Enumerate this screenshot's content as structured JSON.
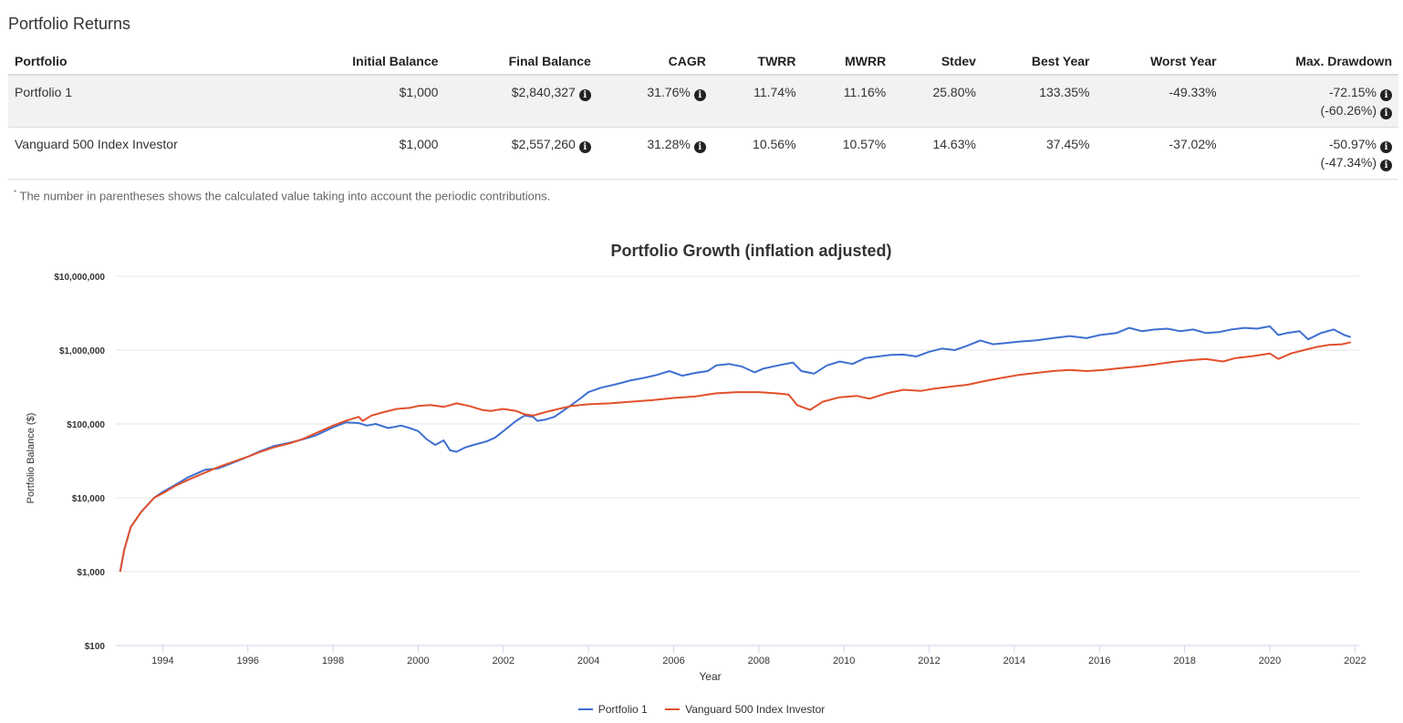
{
  "section_title": "Portfolio Returns",
  "table": {
    "headers": [
      "Portfolio",
      "Initial Balance",
      "Final Balance",
      "CAGR",
      "TWRR",
      "MWRR",
      "Stdev",
      "Best Year",
      "Worst Year",
      "Max. Drawdown"
    ],
    "rows": [
      {
        "portfolio": "Portfolio 1",
        "initial": "$1,000",
        "final": "$2,840,327",
        "cagr": "31.76%",
        "twrr": "11.74%",
        "mwrr": "11.16%",
        "stdev": "25.80%",
        "best": "133.35%",
        "worst": "-49.33%",
        "max_dd": "-72.15%",
        "max_dd_contrib": "(-60.26%)"
      },
      {
        "portfolio": "Vanguard 500 Index Investor",
        "initial": "$1,000",
        "final": "$2,557,260",
        "cagr": "31.28%",
        "twrr": "10.56%",
        "mwrr": "10.57%",
        "stdev": "14.63%",
        "best": "37.45%",
        "worst": "-37.02%",
        "max_dd": "-50.97%",
        "max_dd_contrib": "(-47.34%)"
      }
    ]
  },
  "footnote_mark": "*",
  "footnote": "The number in parentheses shows the calculated value taking into account the periodic contributions.",
  "info_icon_glyph": "i",
  "chart_data": {
    "type": "line",
    "title": "Portfolio Growth (inflation adjusted)",
    "xlabel": "Year",
    "ylabel": "Portfolio Balance ($)",
    "yscale": "log",
    "ylim": [
      100,
      10000000
    ],
    "xlim": [
      1992.9,
      2022.1
    ],
    "y_ticks": [
      100,
      1000,
      10000,
      100000,
      1000000,
      10000000
    ],
    "y_tick_labels": [
      "$100",
      "$1,000",
      "$10,000",
      "$100,000",
      "$1,000,000",
      "$10,000,000"
    ],
    "x_ticks": [
      1994,
      1996,
      1998,
      2000,
      2002,
      2004,
      2006,
      2008,
      2010,
      2012,
      2014,
      2016,
      2018,
      2020,
      2022
    ],
    "x_tick_labels": [
      "1994",
      "1996",
      "1998",
      "2000",
      "2002",
      "2004",
      "2006",
      "2008",
      "2010",
      "2012",
      "2014",
      "2016",
      "2018",
      "2020",
      "2022"
    ],
    "legend_position": "bottom",
    "series": [
      {
        "name": "Portfolio 1",
        "color": "#3f6fd1",
        "points": [
          [
            1993.0,
            1000
          ],
          [
            1993.1,
            2000
          ],
          [
            1993.25,
            4000
          ],
          [
            1993.5,
            6500
          ],
          [
            1993.8,
            10000
          ],
          [
            1994.0,
            12000
          ],
          [
            1994.3,
            15000
          ],
          [
            1994.6,
            19000
          ],
          [
            1995.0,
            24000
          ],
          [
            1995.3,
            25000
          ],
          [
            1995.6,
            29000
          ],
          [
            1996.0,
            36000
          ],
          [
            1996.3,
            43000
          ],
          [
            1996.6,
            50000
          ],
          [
            1997.0,
            56000
          ],
          [
            1997.3,
            62000
          ],
          [
            1997.6,
            70000
          ],
          [
            1998.0,
            90000
          ],
          [
            1998.3,
            105000
          ],
          [
            1998.6,
            103000
          ],
          [
            1998.8,
            95000
          ],
          [
            1999.0,
            100000
          ],
          [
            1999.3,
            88000
          ],
          [
            1999.6,
            95000
          ],
          [
            1999.8,
            88000
          ],
          [
            2000.0,
            80000
          ],
          [
            2000.2,
            62000
          ],
          [
            2000.4,
            52000
          ],
          [
            2000.6,
            60000
          ],
          [
            2000.75,
            44000
          ],
          [
            2000.9,
            42000
          ],
          [
            2001.1,
            48000
          ],
          [
            2001.3,
            52000
          ],
          [
            2001.6,
            58000
          ],
          [
            2001.8,
            65000
          ],
          [
            2002.0,
            80000
          ],
          [
            2002.3,
            110000
          ],
          [
            2002.5,
            130000
          ],
          [
            2002.7,
            125000
          ],
          [
            2002.8,
            110000
          ],
          [
            2003.0,
            115000
          ],
          [
            2003.2,
            125000
          ],
          [
            2003.5,
            165000
          ],
          [
            2003.8,
            220000
          ],
          [
            2004.0,
            270000
          ],
          [
            2004.3,
            310000
          ],
          [
            2004.6,
            340000
          ],
          [
            2005.0,
            390000
          ],
          [
            2005.3,
            420000
          ],
          [
            2005.6,
            460000
          ],
          [
            2005.9,
            520000
          ],
          [
            2006.2,
            450000
          ],
          [
            2006.5,
            490000
          ],
          [
            2006.8,
            520000
          ],
          [
            2007.0,
            620000
          ],
          [
            2007.3,
            650000
          ],
          [
            2007.6,
            600000
          ],
          [
            2007.9,
            500000
          ],
          [
            2008.1,
            560000
          ],
          [
            2008.5,
            630000
          ],
          [
            2008.8,
            680000
          ],
          [
            2009.0,
            520000
          ],
          [
            2009.3,
            480000
          ],
          [
            2009.6,
            620000
          ],
          [
            2009.9,
            700000
          ],
          [
            2010.2,
            650000
          ],
          [
            2010.5,
            780000
          ],
          [
            2010.8,
            820000
          ],
          [
            2011.1,
            860000
          ],
          [
            2011.4,
            870000
          ],
          [
            2011.7,
            820000
          ],
          [
            2012.0,
            950000
          ],
          [
            2012.3,
            1050000
          ],
          [
            2012.6,
            1000000
          ],
          [
            2012.9,
            1150000
          ],
          [
            2013.2,
            1350000
          ],
          [
            2013.5,
            1200000
          ],
          [
            2013.8,
            1250000
          ],
          [
            2014.1,
            1300000
          ],
          [
            2014.5,
            1350000
          ],
          [
            2014.9,
            1450000
          ],
          [
            2015.3,
            1550000
          ],
          [
            2015.7,
            1450000
          ],
          [
            2016.0,
            1600000
          ],
          [
            2016.4,
            1700000
          ],
          [
            2016.7,
            2000000
          ],
          [
            2017.0,
            1800000
          ],
          [
            2017.3,
            1900000
          ],
          [
            2017.6,
            1950000
          ],
          [
            2017.9,
            1800000
          ],
          [
            2018.2,
            1900000
          ],
          [
            2018.5,
            1700000
          ],
          [
            2018.8,
            1750000
          ],
          [
            2019.1,
            1900000
          ],
          [
            2019.4,
            2000000
          ],
          [
            2019.7,
            1950000
          ],
          [
            2020.0,
            2100000
          ],
          [
            2020.2,
            1600000
          ],
          [
            2020.4,
            1700000
          ],
          [
            2020.7,
            1800000
          ],
          [
            2020.9,
            1400000
          ],
          [
            2021.2,
            1700000
          ],
          [
            2021.5,
            1900000
          ],
          [
            2021.75,
            1600000
          ],
          [
            2021.9,
            1500000
          ]
        ]
      },
      {
        "name": "Vanguard 500 Index Investor",
        "color": "#e2502c",
        "points": [
          [
            1993.0,
            1000
          ],
          [
            1993.1,
            2000
          ],
          [
            1993.25,
            4000
          ],
          [
            1993.5,
            6500
          ],
          [
            1993.8,
            10000
          ],
          [
            1994.0,
            11500
          ],
          [
            1994.3,
            14500
          ],
          [
            1994.6,
            17500
          ],
          [
            1995.0,
            22000
          ],
          [
            1995.3,
            26000
          ],
          [
            1995.6,
            30000
          ],
          [
            1996.0,
            36000
          ],
          [
            1996.3,
            42000
          ],
          [
            1996.6,
            48000
          ],
          [
            1997.0,
            55000
          ],
          [
            1997.3,
            63000
          ],
          [
            1997.6,
            75000
          ],
          [
            1998.0,
            95000
          ],
          [
            1998.3,
            110000
          ],
          [
            1998.6,
            125000
          ],
          [
            1998.7,
            110000
          ],
          [
            1998.9,
            130000
          ],
          [
            1999.2,
            145000
          ],
          [
            1999.5,
            160000
          ],
          [
            1999.8,
            165000
          ],
          [
            2000.0,
            175000
          ],
          [
            2000.3,
            180000
          ],
          [
            2000.6,
            170000
          ],
          [
            2000.9,
            190000
          ],
          [
            2001.2,
            175000
          ],
          [
            2001.5,
            155000
          ],
          [
            2001.7,
            150000
          ],
          [
            2002.0,
            160000
          ],
          [
            2002.3,
            150000
          ],
          [
            2002.5,
            135000
          ],
          [
            2002.7,
            130000
          ],
          [
            2003.0,
            145000
          ],
          [
            2003.3,
            160000
          ],
          [
            2003.6,
            175000
          ],
          [
            2004.0,
            185000
          ],
          [
            2004.5,
            190000
          ],
          [
            2005.0,
            200000
          ],
          [
            2005.5,
            210000
          ],
          [
            2006.0,
            225000
          ],
          [
            2006.5,
            235000
          ],
          [
            2007.0,
            260000
          ],
          [
            2007.5,
            270000
          ],
          [
            2008.0,
            270000
          ],
          [
            2008.4,
            260000
          ],
          [
            2008.7,
            250000
          ],
          [
            2008.9,
            180000
          ],
          [
            2009.2,
            155000
          ],
          [
            2009.5,
            200000
          ],
          [
            2009.9,
            230000
          ],
          [
            2010.3,
            240000
          ],
          [
            2010.6,
            220000
          ],
          [
            2011.0,
            260000
          ],
          [
            2011.4,
            290000
          ],
          [
            2011.8,
            280000
          ],
          [
            2012.1,
            300000
          ],
          [
            2012.5,
            320000
          ],
          [
            2012.9,
            340000
          ],
          [
            2013.3,
            380000
          ],
          [
            2013.7,
            420000
          ],
          [
            2014.1,
            460000
          ],
          [
            2014.5,
            490000
          ],
          [
            2014.9,
            520000
          ],
          [
            2015.3,
            540000
          ],
          [
            2015.7,
            520000
          ],
          [
            2016.1,
            540000
          ],
          [
            2016.5,
            570000
          ],
          [
            2016.9,
            600000
          ],
          [
            2017.3,
            640000
          ],
          [
            2017.7,
            690000
          ],
          [
            2018.1,
            730000
          ],
          [
            2018.5,
            760000
          ],
          [
            2018.9,
            700000
          ],
          [
            2019.2,
            780000
          ],
          [
            2019.6,
            830000
          ],
          [
            2020.0,
            900000
          ],
          [
            2020.2,
            760000
          ],
          [
            2020.5,
            900000
          ],
          [
            2020.8,
            1000000
          ],
          [
            2021.1,
            1100000
          ],
          [
            2021.4,
            1180000
          ],
          [
            2021.7,
            1200000
          ],
          [
            2021.9,
            1280000
          ]
        ]
      }
    ]
  }
}
